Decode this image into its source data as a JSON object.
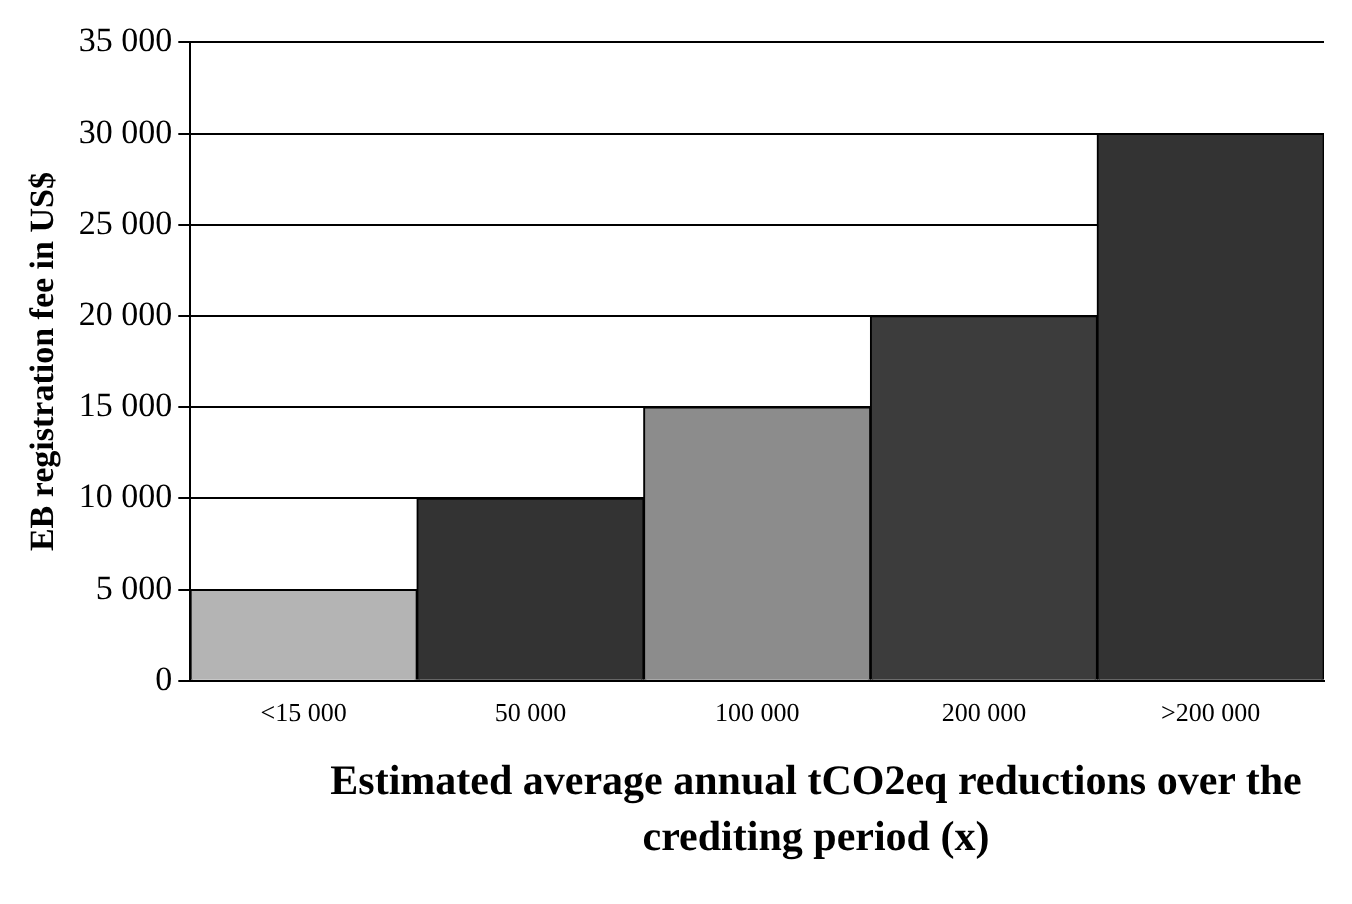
{
  "chart_data": {
    "type": "bar",
    "xlabel": "Estimated average annual tCO2eq reductions over the crediting period (x)",
    "ylabel": "EB registration fee in US$",
    "categories": [
      "<15 000",
      "50 000",
      "100 000",
      "200 000",
      ">200 000"
    ],
    "values": [
      5000,
      10000,
      15000,
      20000,
      30000
    ],
    "colors": [
      "#b4b4b4",
      "#333333",
      "#8c8c8c",
      "#3c3c3c",
      "#333333"
    ],
    "ylim": [
      0,
      35000
    ],
    "yticks": [
      {
        "value": 0,
        "label": "0"
      },
      {
        "value": 5000,
        "label": "5 000"
      },
      {
        "value": 10000,
        "label": "10 000"
      },
      {
        "value": 15000,
        "label": "15 000"
      },
      {
        "value": 20000,
        "label": "20 000"
      },
      {
        "value": 25000,
        "label": "25 000"
      },
      {
        "value": 30000,
        "label": "30 000"
      },
      {
        "value": 35000,
        "label": "35 000"
      }
    ],
    "grid": "y"
  }
}
